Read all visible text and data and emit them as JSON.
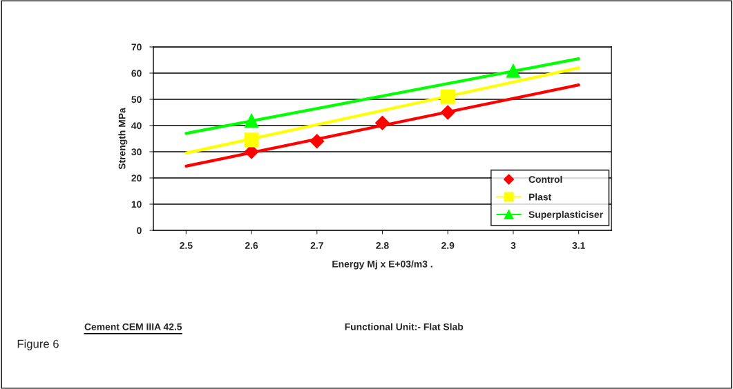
{
  "chart_data": {
    "type": "line",
    "xlabel": "Energy Mj x E+03/m3 .",
    "ylabel": "Strength MPa",
    "xlim": [
      2.45,
      3.15
    ],
    "xticks": [
      2.5,
      2.6,
      2.7,
      2.8,
      2.9,
      3,
      3.1
    ],
    "ylim": [
      0,
      70
    ],
    "yticks": [
      0,
      10,
      20,
      30,
      40,
      50,
      60,
      70
    ],
    "grid": "y",
    "legend": "bottom right",
    "series": [
      {
        "name": "Control",
        "type": "scatter",
        "marker": "diamond",
        "color": "#ff0000",
        "x": [
          2.6,
          2.7,
          2.8,
          2.9
        ],
        "values": [
          30,
          34,
          41,
          45
        ]
      },
      {
        "name": "Plast",
        "type": "scatter",
        "marker": "square",
        "line_style": "solid",
        "color": "#ffff00",
        "x": [
          2.6,
          2.9
        ],
        "values": [
          34.5,
          51
        ]
      },
      {
        "name": "Superplasticiser",
        "type": "scatter",
        "marker": "triangle",
        "line_style": "solid",
        "color": "#00ff00",
        "x": [
          2.6,
          3.0
        ],
        "values": [
          42,
          61
        ]
      },
      {
        "color": "#ff0000",
        "x": [
          2.5,
          3.1
        ],
        "values": [
          24.5,
          55.5
        ]
      },
      {
        "color": "#ffff00",
        "x": [
          2.5,
          3.1
        ],
        "values": [
          29.5,
          62
        ]
      },
      {
        "color": "#00ff00",
        "x": [
          2.5,
          3.1
        ],
        "values": [
          37,
          65.5
        ]
      }
    ],
    "annotations": [
      "Cement CEM IIIA 42.5",
      "Functional Unit:- Flat Slab",
      "Figure 6"
    ]
  }
}
